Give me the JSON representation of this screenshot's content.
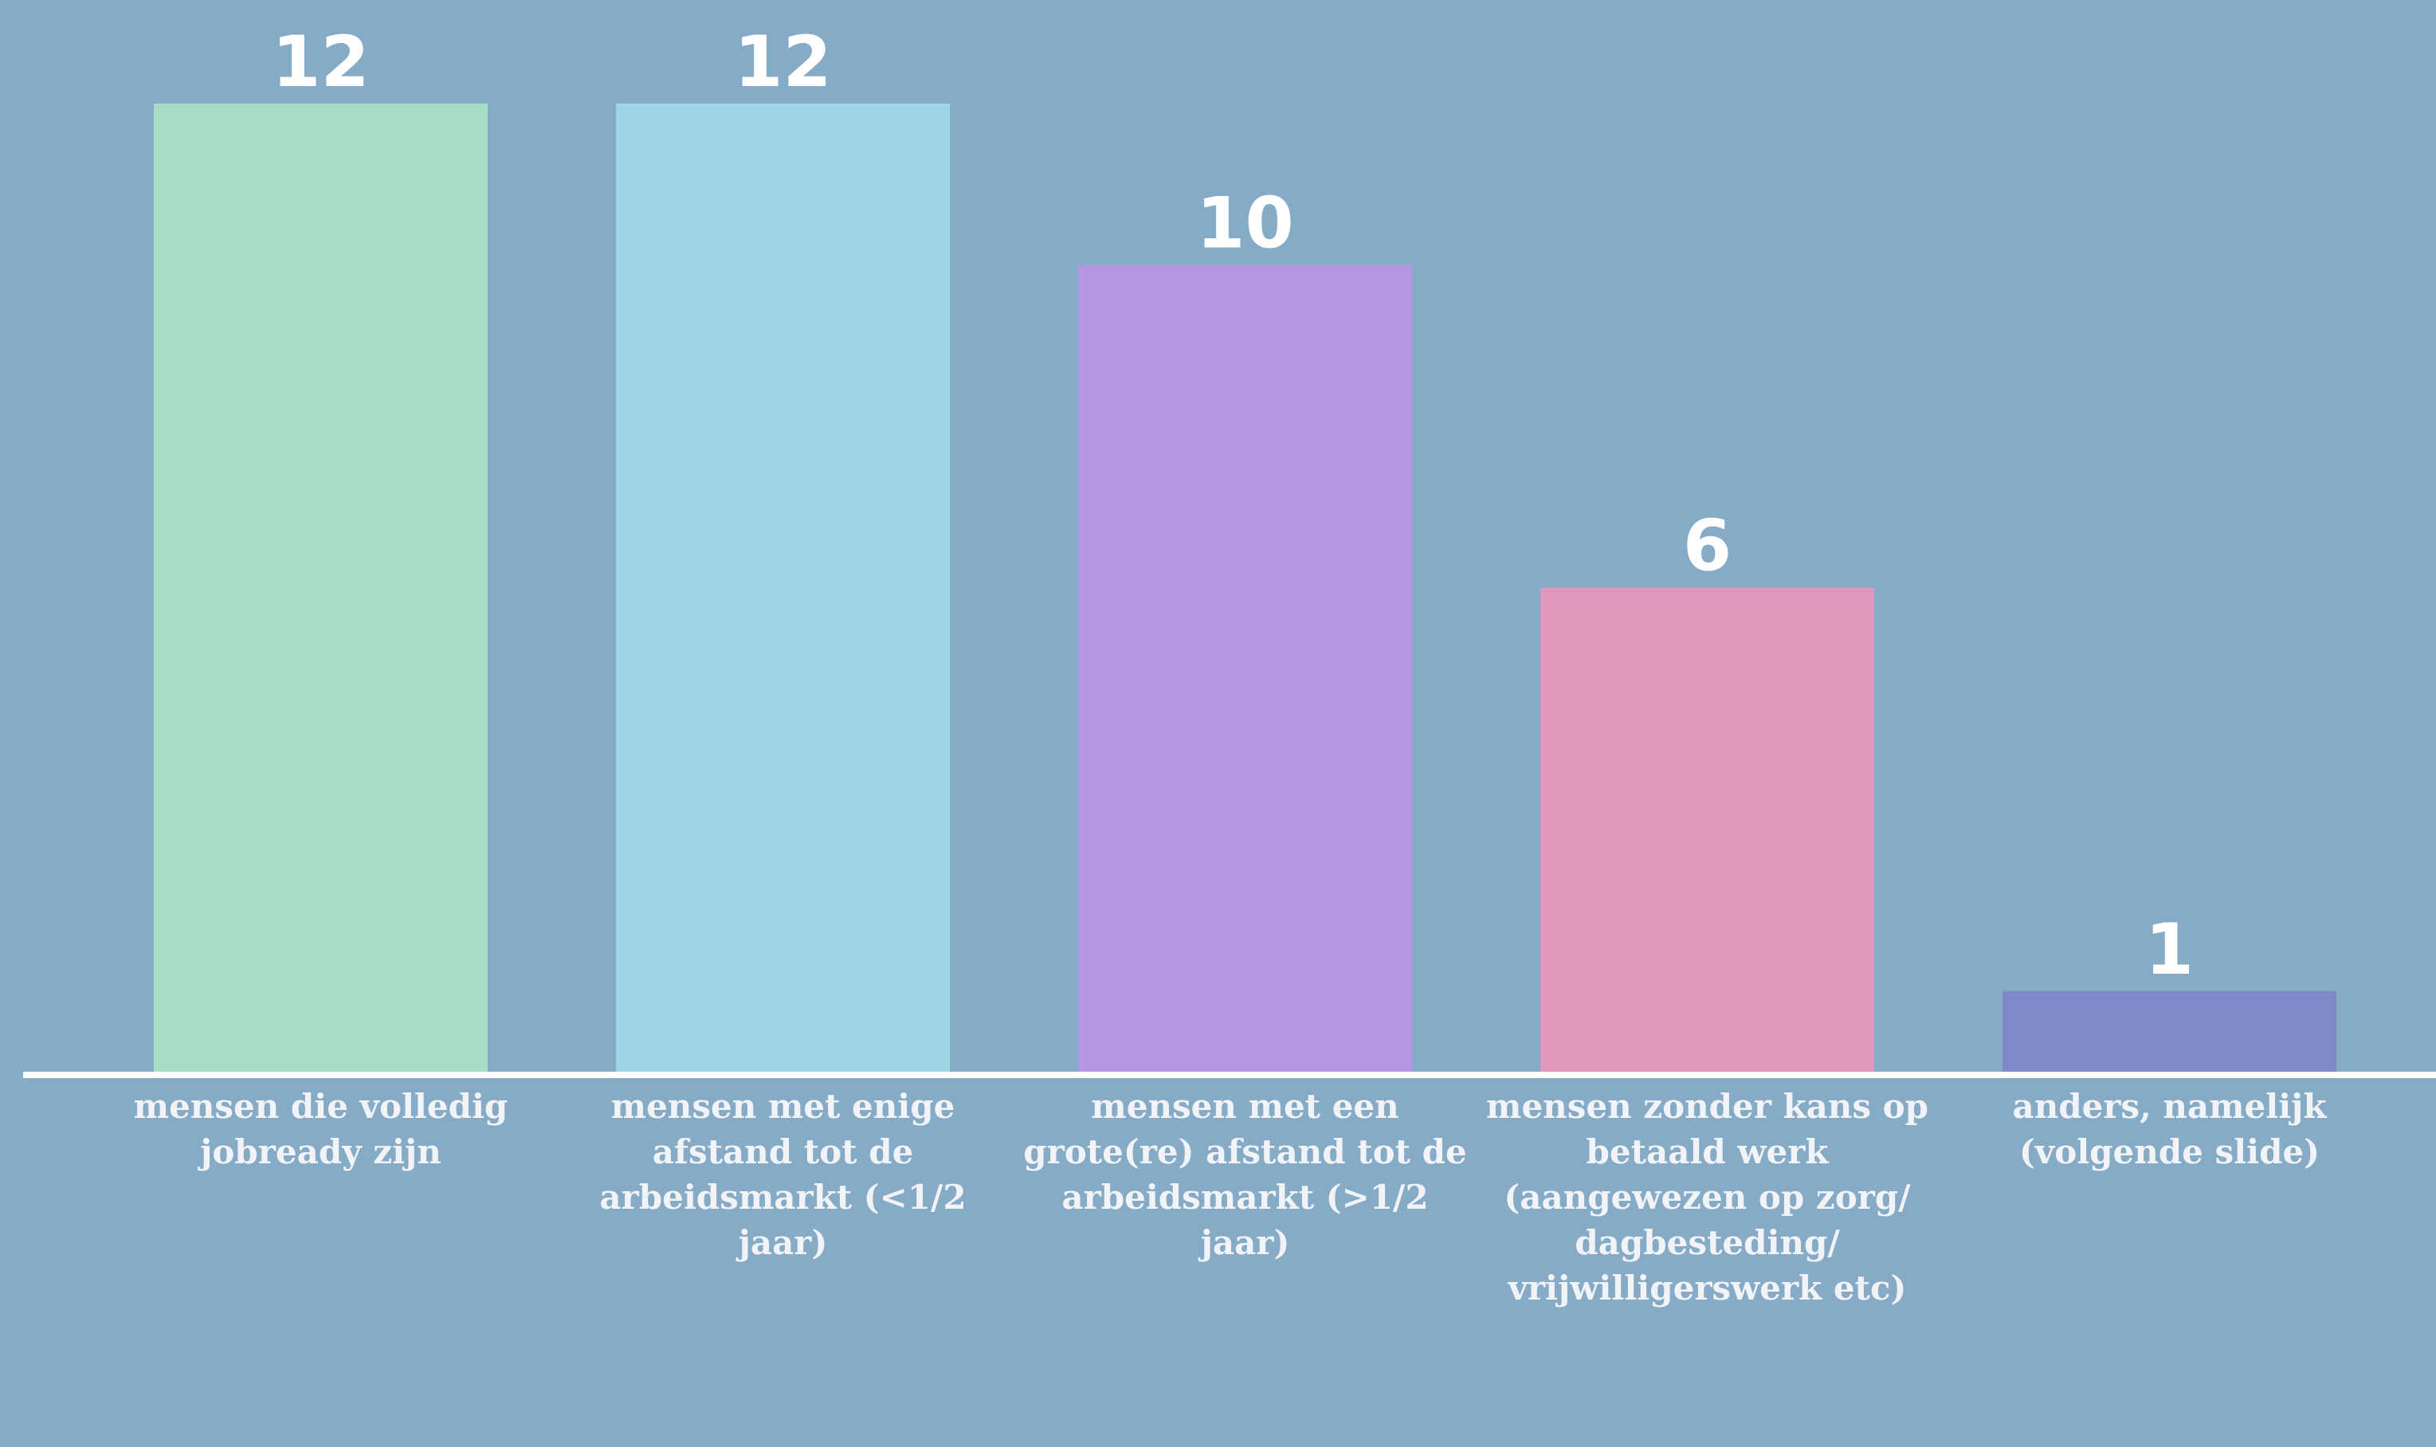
{
  "chart_data": {
    "type": "bar",
    "categories": [
      "mensen die volledig jobready zijn",
      "mensen met enige afstand tot de arbeidsmarkt (<1/2 jaar)",
      "mensen met een grote(re) afstand tot de arbeidsmarkt (>1/2 jaar)",
      "mensen zonder kans op betaald werk (aangewezen op zorg/ dagbesteding/ vrijwilligerswerk etc)",
      "anders, namelijk (volgende slide)"
    ],
    "values": [
      12,
      12,
      10,
      6,
      1
    ],
    "colors": [
      "#a5dec5",
      "#a0d3e6",
      "#b596e4",
      "#e097bd",
      "#8089c8"
    ]
  }
}
